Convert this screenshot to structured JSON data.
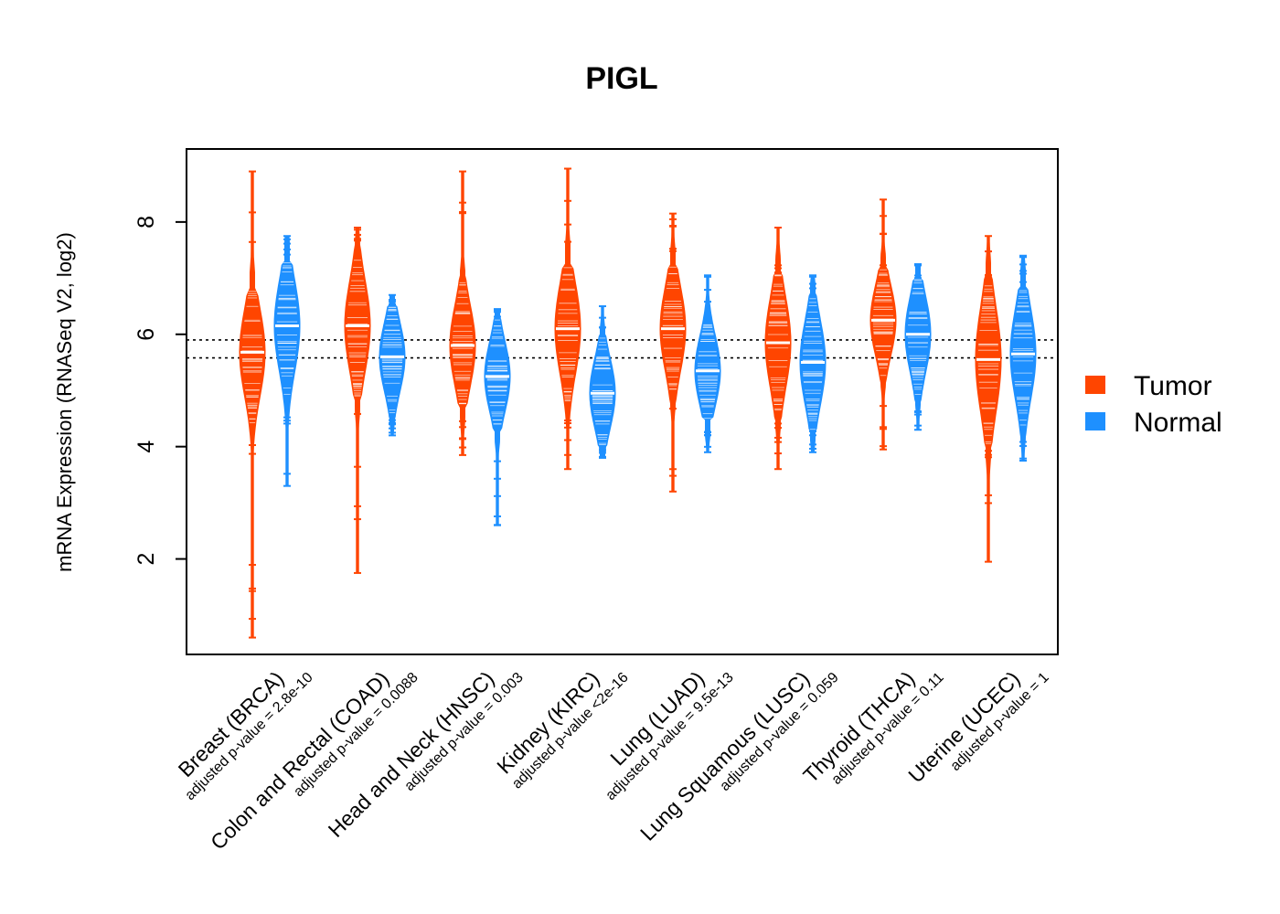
{
  "chart_data": {
    "type": "violin",
    "title": "PIGL",
    "ylabel": "mRNA Expression (RNASeq V2, log2)",
    "xlabel": "",
    "ylim": [
      0.3,
      9.3
    ],
    "yticks": [
      2,
      4,
      6,
      8
    ],
    "reference_lines": [
      5.9,
      5.58
    ],
    "legend": [
      {
        "name": "Tumor",
        "color": "#FF4500"
      },
      {
        "name": "Normal",
        "color": "#1E90FF"
      }
    ],
    "categories": [
      {
        "label": "Breast (BRCA)",
        "pvalue": "adjusted p-value = 2.8e-10",
        "tumor": {
          "median": 5.68,
          "min": 0.6,
          "max": 8.9,
          "core_low": 4.3,
          "core_high": 6.8
        },
        "normal": {
          "median": 6.15,
          "min": 3.3,
          "max": 7.75,
          "core_low": 4.7,
          "core_high": 7.3
        }
      },
      {
        "label": "Colon and Rectal (COAD)",
        "pvalue": "adjusted p-value = 0.0088",
        "tumor": {
          "median": 6.15,
          "min": 1.75,
          "max": 7.9,
          "core_low": 4.9,
          "core_high": 7.5
        },
        "normal": {
          "median": 5.6,
          "min": 4.2,
          "max": 6.7,
          "core_low": 4.5,
          "core_high": 6.5
        }
      },
      {
        "label": "Head and Neck (HNSC)",
        "pvalue": "adjusted p-value = 0.003",
        "tumor": {
          "median": 5.8,
          "min": 3.85,
          "max": 8.9,
          "core_low": 4.7,
          "core_high": 7.0
        },
        "normal": {
          "median": 5.25,
          "min": 2.6,
          "max": 6.45,
          "core_low": 4.3,
          "core_high": 6.3
        }
      },
      {
        "label": "Kidney (KIRC)",
        "pvalue": "adjusted p-value <2e-16",
        "tumor": {
          "median": 6.1,
          "min": 3.6,
          "max": 8.95,
          "core_low": 4.6,
          "core_high": 7.2
        },
        "normal": {
          "median": 4.95,
          "min": 3.8,
          "max": 6.5,
          "core_low": 4.0,
          "core_high": 6.0
        }
      },
      {
        "label": "Lung (LUAD)",
        "pvalue": "adjusted p-value = 9.5e-13",
        "tumor": {
          "median": 6.1,
          "min": 3.2,
          "max": 8.15,
          "core_low": 4.8,
          "core_high": 7.2
        },
        "normal": {
          "median": 5.35,
          "min": 3.9,
          "max": 7.05,
          "core_low": 4.5,
          "core_high": 6.5
        }
      },
      {
        "label": "Lung Squamous (LUSC)",
        "pvalue": "adjusted p-value = 0.059",
        "tumor": {
          "median": 5.85,
          "min": 3.6,
          "max": 7.9,
          "core_low": 4.5,
          "core_high": 7.1
        },
        "normal": {
          "median": 5.5,
          "min": 3.9,
          "max": 7.05,
          "core_low": 4.3,
          "core_high": 6.7
        }
      },
      {
        "label": "Thyroid (THCA)",
        "pvalue": "adjusted p-value = 0.11",
        "tumor": {
          "median": 6.25,
          "min": 3.95,
          "max": 8.4,
          "core_low": 5.2,
          "core_high": 7.2
        },
        "normal": {
          "median": 6.0,
          "min": 4.3,
          "max": 7.25,
          "core_low": 4.8,
          "core_high": 7.0
        }
      },
      {
        "label": "Uterine (UCEC)",
        "pvalue": "adjusted p-value = 1",
        "tumor": {
          "median": 5.55,
          "min": 1.95,
          "max": 7.75,
          "core_low": 4.0,
          "core_high": 7.0
        },
        "normal": {
          "median": 5.65,
          "min": 3.75,
          "max": 7.4,
          "core_low": 4.2,
          "core_high": 6.8
        }
      }
    ]
  }
}
